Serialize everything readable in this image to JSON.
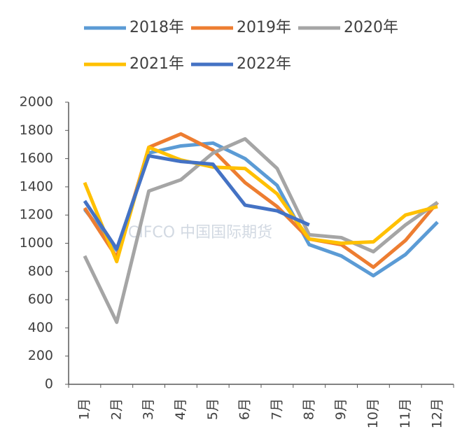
{
  "chart_data": {
    "type": "line",
    "categories": [
      "1月",
      "2月",
      "3月",
      "4月",
      "5月",
      "6月",
      "7月",
      "8月",
      "9月",
      "10月",
      "11月",
      "12月"
    ],
    "series": [
      {
        "name": "2018年",
        "color": "#5b9bd5",
        "values": [
          1240,
          950,
          1640,
          1690,
          1710,
          1600,
          1410,
          990,
          910,
          770,
          920,
          1150
        ]
      },
      {
        "name": "2019年",
        "color": "#ed7d31",
        "values": [
          1250,
          900,
          1680,
          1775,
          1660,
          1430,
          1260,
          1030,
          990,
          830,
          1020,
          1290
        ]
      },
      {
        "name": "2020年",
        "color": "#a5a5a5",
        "values": [
          910,
          440,
          1370,
          1450,
          1640,
          1740,
          1530,
          1060,
          1040,
          940,
          1130,
          1290
        ]
      },
      {
        "name": "2021年",
        "color": "#ffc000",
        "values": [
          1430,
          870,
          1680,
          1590,
          1540,
          1530,
          1350,
          1030,
          1000,
          1010,
          1200,
          1260
        ]
      },
      {
        "name": "2022年",
        "color": "#4472c4",
        "values": [
          1300,
          960,
          1620,
          1580,
          1560,
          1270,
          1230,
          1130,
          null,
          null,
          null,
          null
        ]
      }
    ],
    "ylim": [
      0,
      2000
    ],
    "yticks": [
      0,
      200,
      400,
      600,
      800,
      1000,
      1200,
      1400,
      1600,
      1800,
      2000
    ],
    "grid": false,
    "legend": "top",
    "watermark": "CIFCO 中国国际期货"
  }
}
